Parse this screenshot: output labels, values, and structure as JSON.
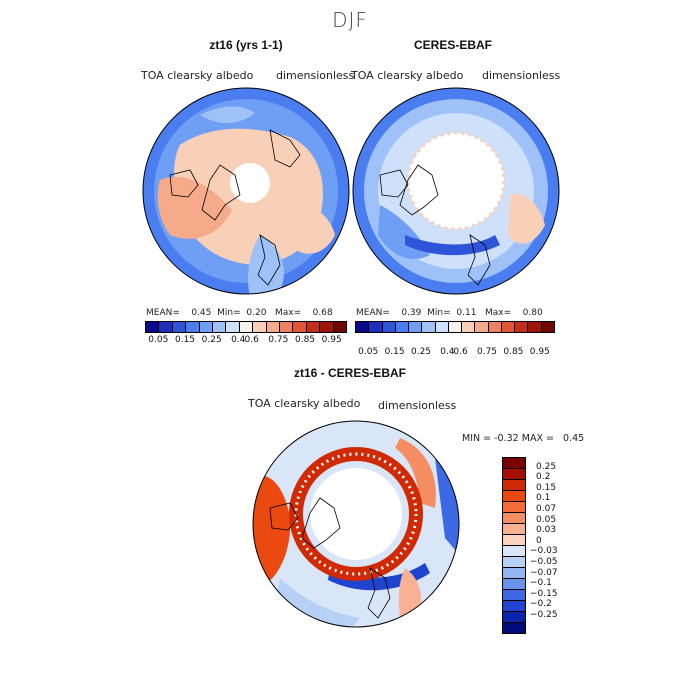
{
  "title": "DJF",
  "panels": [
    {
      "id": "model",
      "title": "zt16 (yrs 1-1)",
      "variable": "TOA clearsky albedo",
      "units": "dimensionless",
      "mean_label": "MEAN=",
      "mean": "0.45",
      "min_label": "Min=",
      "min": "0.20",
      "max_label": "Max=",
      "max": "0.68"
    },
    {
      "id": "obs",
      "title": "CERES-EBAF",
      "variable": "TOA clearsky albedo",
      "units": "dimensionless",
      "mean_label": "MEAN=",
      "mean": "0.39",
      "min_label": "Min=",
      "min": "0.11",
      "max_label": "Max=",
      "max": "0.80"
    }
  ],
  "abs_colorbar": {
    "ticks": [
      "0.05",
      "0.15",
      "0.25",
      "0.4",
      "0.6",
      "0.75",
      "0.85",
      "0.95"
    ],
    "colors": [
      "#0b0b8a",
      "#1f2fb8",
      "#2e55d9",
      "#4a7ef0",
      "#6f9ef5",
      "#9ec1f8",
      "#cfe0fb",
      "#f6f1ea",
      "#f8d0b8",
      "#f5ab8a",
      "#ef8060",
      "#e25535",
      "#c42e1a",
      "#9e1508",
      "#6e0a02"
    ]
  },
  "diff_panel": {
    "title": "zt16 - CERES-EBAF",
    "variable": "TOA clearsky albedo",
    "units": "dimensionless",
    "min_label": "MIN =",
    "min": "-0.32",
    "max_label": "MAX =",
    "max": "0.45"
  },
  "diff_colorbar": {
    "labels": [
      "0.25",
      "0.2",
      "0.15",
      "0.1",
      "0.07",
      "0.05",
      "0.03",
      "0",
      "−0.03",
      "−0.05",
      "−0.07",
      "−0.1",
      "−0.15",
      "−0.2",
      "−0.25"
    ],
    "colors": [
      "#7a0000",
      "#a80e00",
      "#d02a05",
      "#ea4a10",
      "#f26a35",
      "#f58d62",
      "#f8b293",
      "#fad3c0",
      "#d9e6f7",
      "#b7d0f5",
      "#93b5f1",
      "#6a93ec",
      "#3d6ae4",
      "#1e44d0",
      "#0c24ac",
      "#000c7a"
    ]
  }
}
